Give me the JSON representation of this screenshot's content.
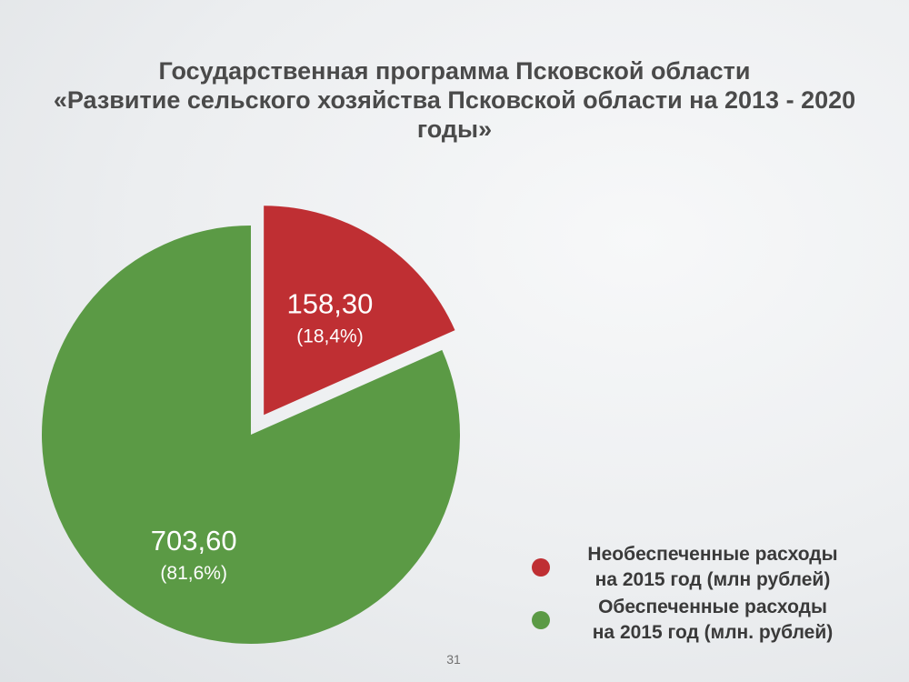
{
  "title": {
    "line1": "Государственная программа Псковской области",
    "line2": "«Развитие сельского хозяйства Псковской области на 2013 - 2020",
    "line3": "годы»"
  },
  "chart_data": {
    "type": "pie",
    "title": "Государственная программа Псковской области «Развитие сельского хозяйства Псковской области на 2013 - 2020 годы»",
    "slices": [
      {
        "label": "Необеспеченные расходы на 2015 год (млн рублей)",
        "value": 158.3,
        "value_label": "158,30",
        "percent": 18.4,
        "percent_label": "(18,4%)",
        "color": "#bf2f33",
        "exploded": true
      },
      {
        "label": "Обеспеченные расходы на 2015 год (млн. рублей)",
        "value": 703.6,
        "value_label": "703,60",
        "percent": 81.6,
        "percent_label": "(81,6%)",
        "color": "#5b9a45",
        "exploded": false
      }
    ],
    "legend_position": "bottom-right"
  },
  "legend": [
    {
      "label": "Необеспеченные расходы\nна 2015 год  (млн рублей)",
      "color": "#bf2f33"
    },
    {
      "label": "Обеспеченные расходы\nна 2015 год (млн. рублей)",
      "color": "#5b9a45"
    }
  ],
  "page_number": "31"
}
